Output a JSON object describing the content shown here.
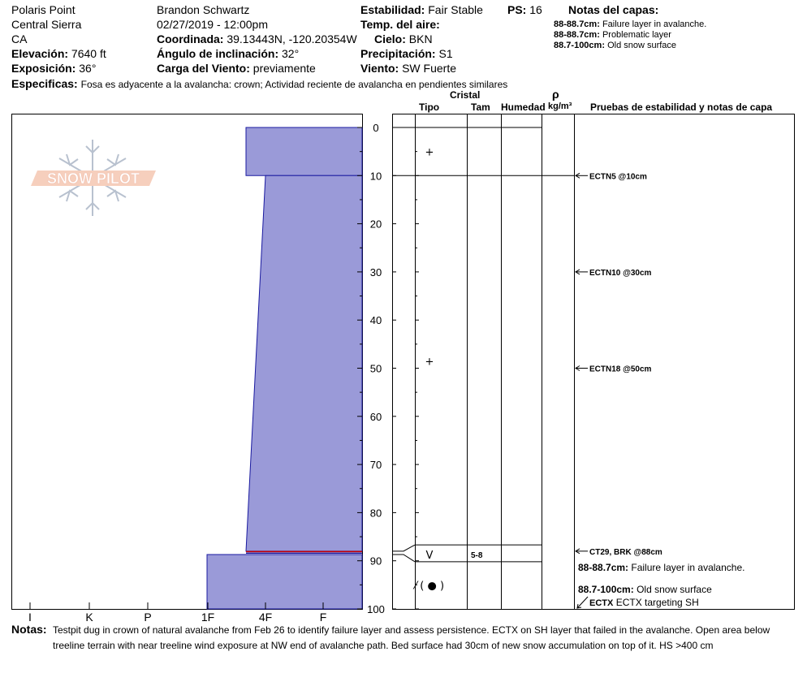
{
  "header": {
    "location": "Polaris Point",
    "range": "Central Sierra",
    "state": "CA",
    "elevation_label": "Elevación:",
    "elevation_value": "7640 ft",
    "aspect_label": "Exposición:",
    "aspect_value": "36°",
    "observer": "Brandon Schwartz",
    "datetime": "02/27/2019 - 12:00pm",
    "coord_label": "Coordinada:",
    "coord_value": "39.13443N, -120.20354W",
    "slope_label": "Ángulo de inclinación:",
    "slope_value": "32°",
    "wind_load_label": "Carga del Viento:",
    "wind_load_value": "previamente",
    "stability_label": "Estabilidad:",
    "stability_value": "Fair Stable",
    "ps_label": "PS:",
    "ps_value": "16",
    "air_temp_label": "Temp. del aire:",
    "sky_label": "Cielo:",
    "sky_value": "BKN",
    "precip_label": "Precipitación:",
    "precip_value": "S1",
    "wind_label": "Viento:",
    "wind_value": "SW Fuerte",
    "specifics_label": "Especificas:",
    "specifics_value": "Fosa es adyacente a la avalancha: crown;  Actividad reciente de avalancha en pendientes similares"
  },
  "layer_notes": {
    "title": "Notas del capas:",
    "items": [
      {
        "range": "88-88.7cm:",
        "text": "Failure layer in avalanche."
      },
      {
        "range": "88-88.7cm:",
        "text": "Problematic layer"
      },
      {
        "range": "88.7-100cm:",
        "text": "Old snow surface"
      }
    ]
  },
  "logo": {
    "text": "SNOW PILOT"
  },
  "columns": {
    "crystal": "Cristal",
    "type": "Tipo",
    "size": "Tam",
    "humidity": "Humedad",
    "rho": "ρ",
    "density_unit": "kg/m³",
    "tests_title": "Pruebas de estabilidad y notas de capa"
  },
  "hardness_axis": {
    "labels": [
      "I",
      "K",
      "P",
      "1F",
      "4F",
      "F"
    ]
  },
  "depth_axis": {
    "labels": [
      "0",
      "10",
      "20",
      "30",
      "40",
      "50",
      "60",
      "70",
      "80",
      "90",
      "100"
    ],
    "min": 0,
    "max": 100
  },
  "layers": [
    {
      "top": 0,
      "bottom": 10,
      "hardness_top": 4.5,
      "hardness_bottom": 4.5
    },
    {
      "top": 10,
      "bottom": 88,
      "hardness_top": 4.15,
      "hardness_bottom": 4.5
    },
    {
      "top": 88.7,
      "bottom": 100,
      "hardness_top": 5.0,
      "hardness_bottom": 5.0
    }
  ],
  "grains": [
    {
      "depth": 5,
      "symbol": "+",
      "size": ""
    },
    {
      "depth": 48.5,
      "symbol": "+",
      "size": ""
    },
    {
      "depth": 88.7,
      "symbol": "V",
      "size": "5-8"
    },
    {
      "depth": 95,
      "symbol": "⁄ ( ● )",
      "size": ""
    }
  ],
  "tests": [
    {
      "depth": 10,
      "label": "ECTN5 @10cm"
    },
    {
      "depth": 30,
      "label": "ECTN10 @30cm"
    },
    {
      "depth": 50,
      "label": "ECTN18 @50cm"
    },
    {
      "depth": 88,
      "label": "CT29, BRK @88cm"
    }
  ],
  "layer_annotations": [
    {
      "range": "88-88.7cm:",
      "text": "Failure layer in avalanche."
    },
    {
      "range": "88.7-100cm:",
      "text": "Old snow surface"
    },
    {
      "range": "ECTX",
      "text": "ECTX targeting SH"
    }
  ],
  "notes": {
    "label": "Notas:",
    "line1": "Testpit dug in crown of natural avalanche from Feb 26 to identify failure layer and assess persistence. ECTX on SH layer that failed in the avalanche. Open area below",
    "line2": "treeline terrain with near treeline wind exposure at NW end of avalanche path. Bed surface had 30cm of new snow accumulation on top of it. HS >400 cm"
  },
  "colors": {
    "layer_fill": "#9a9ad8",
    "layer_edge": "#1a1aa0",
    "weak_layer": "#cc0000"
  }
}
